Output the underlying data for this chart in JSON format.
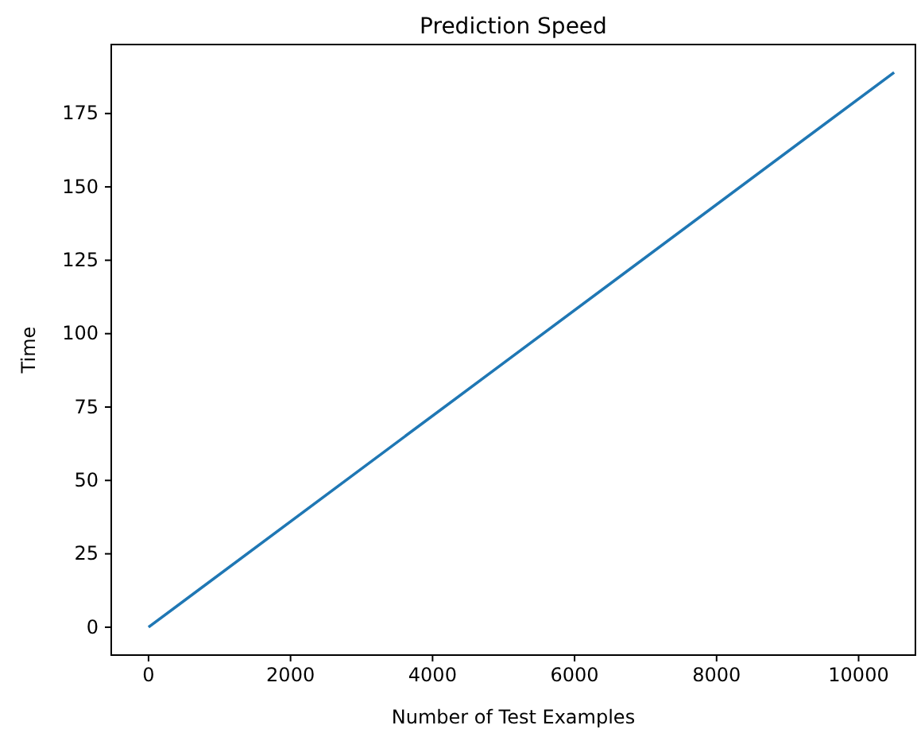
{
  "chart_data": {
    "type": "line",
    "title": "Prediction Speed",
    "xlabel": "Number of Test Examples",
    "ylabel": "Time",
    "x": [
      0,
      5000,
      10500
    ],
    "series": [
      {
        "color": "#1f77b4",
        "values": [
          0,
          90,
          189
        ]
      }
    ],
    "xlim": [
      -525,
      10800
    ],
    "xticks": [
      0,
      2000,
      4000,
      6000,
      8000,
      10000
    ],
    "ylim": [
      -9.5,
      198.5
    ],
    "yticks": [
      0,
      25,
      50,
      75,
      100,
      125,
      150,
      175
    ],
    "grid": false
  }
}
